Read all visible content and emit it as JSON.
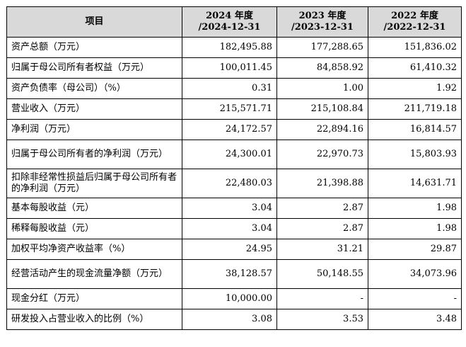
{
  "table": {
    "headers": [
      {
        "line1": "项目",
        "line2": ""
      },
      {
        "line1": "2024 年度",
        "line2": "/2024-12-31"
      },
      {
        "line1": "2023 年度",
        "line2": "/2023-12-31"
      },
      {
        "line1": "2022 年度",
        "line2": "/2022-12-31"
      }
    ],
    "rows": [
      {
        "item": "资产总额（万元）",
        "y2024": "182,495.88",
        "y2023": "177,288.65",
        "y2022": "151,836.02"
      },
      {
        "item": "归属于母公司所有者权益（万元）",
        "y2024": "100,011.45",
        "y2023": "84,858.92",
        "y2022": "61,410.32"
      },
      {
        "item": "资产负债率（母公司）（%）",
        "y2024": "0.31",
        "y2023": "1.00",
        "y2022": "1.92"
      },
      {
        "item": "营业收入（万元）",
        "y2024": "215,571.71",
        "y2023": "215,108.84",
        "y2022": "211,719.18"
      },
      {
        "item": "净利润（万元）",
        "y2024": "24,172.57",
        "y2023": "22,894.16",
        "y2022": "16,814.57"
      },
      {
        "item": "归属于母公司所有者的净利润（万元）",
        "y2024": "24,300.01",
        "y2023": "22,970.73",
        "y2022": "15,803.93"
      },
      {
        "item": "扣除非经常性损益后归属于母公司所有者的净利润（万元）",
        "y2024": "22,480.03",
        "y2023": "21,398.88",
        "y2022": "14,631.71"
      },
      {
        "item": "基本每股收益（元）",
        "y2024": "3.04",
        "y2023": "2.87",
        "y2022": "1.98"
      },
      {
        "item": "稀释每股收益（元）",
        "y2024": "3.04",
        "y2023": "2.87",
        "y2022": "1.98"
      },
      {
        "item": "加权平均净资产收益率（%）",
        "y2024": "24.95",
        "y2023": "31.21",
        "y2022": "29.87"
      },
      {
        "item": "经营活动产生的现金流量净额（万元）",
        "y2024": "38,128.57",
        "y2023": "50,148.55",
        "y2022": "34,073.96"
      },
      {
        "item": "现金分红（万元）",
        "y2024": "10,000.00",
        "y2023": "-",
        "y2022": "-"
      },
      {
        "item": "研发投入占营业收入的比例（%）",
        "y2024": "3.08",
        "y2023": "3.53",
        "y2022": "3.48"
      }
    ]
  }
}
